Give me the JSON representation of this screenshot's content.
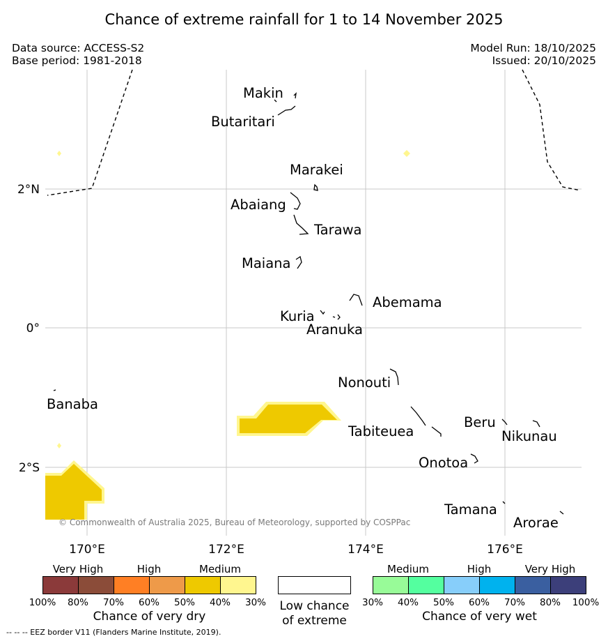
{
  "title": "Chance of extreme rainfall for 1 to 14 November 2025",
  "data_source": "Data source: ACCESS-S2",
  "base_period": "Base period: 1981-2018",
  "model_run": "Model Run: 18/10/2025",
  "issued": "Issued: 20/10/2025",
  "map": {
    "lat_ticks": [
      "2°N",
      "0°",
      "2°S"
    ],
    "lon_ticks": [
      "170°E",
      "172°E",
      "174°E",
      "176°E"
    ],
    "islands": [
      "Makin",
      "Butaritari",
      "Marakei",
      "Abaiang",
      "Tarawa",
      "Maiana",
      "Abemama",
      "Kuria",
      "Aranuka",
      "Nonouti",
      "Banaba",
      "Tabiteuea",
      "Beru",
      "Nikunau",
      "Onotoa",
      "Tamana",
      "Arorae"
    ],
    "copyright": "© Commonwealth of Australia 2025, Bureau of Meteorology, supported by COSPPac",
    "colors": {
      "dry_50_60": "#eec900",
      "dry_30_40": "#fff68f",
      "eez": "#000000"
    }
  },
  "legend": {
    "dry": {
      "categories": [
        "Very High",
        "High",
        "Medium"
      ],
      "percents": [
        "100%",
        "80%",
        "70%",
        "60%",
        "50%",
        "40%",
        "30%"
      ],
      "colors": [
        "#8b3a3a",
        "#8b4c39",
        "#ff7f24",
        "#ee9a49",
        "#eec900",
        "#fff68f"
      ],
      "caption": "Chance of very dry"
    },
    "low": {
      "caption_line1": "Low chance",
      "caption_line2": "of extreme"
    },
    "wet": {
      "categories": [
        "Medium",
        "High",
        "Very High"
      ],
      "percents": [
        "30%",
        "40%",
        "50%",
        "60%",
        "70%",
        "80%",
        "100%"
      ],
      "colors": [
        "#98fb98",
        "#54ff9f",
        "#87cefa",
        "#00b2ee",
        "#3a5fa0",
        "#3c3f7a"
      ],
      "caption": "Chance of very wet"
    }
  },
  "footnote": "--  --  -- EEZ border V11 (Flanders Marine Institute, 2019)."
}
